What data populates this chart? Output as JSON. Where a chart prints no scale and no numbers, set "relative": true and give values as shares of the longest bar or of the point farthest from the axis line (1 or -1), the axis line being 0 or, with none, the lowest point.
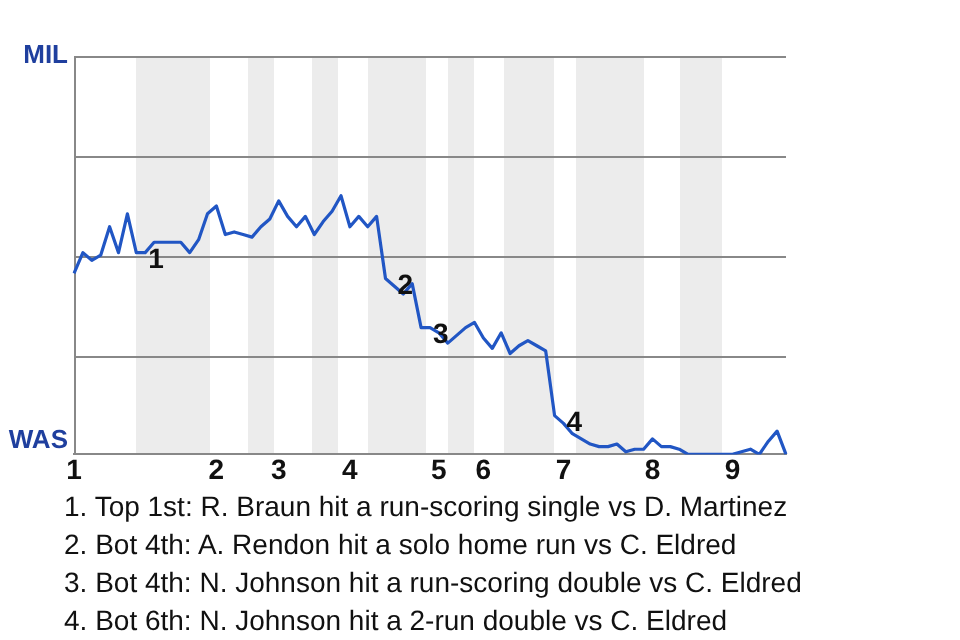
{
  "chart_data": {
    "type": "line",
    "relative": true,
    "categories": [
      "1",
      null,
      null,
      null,
      null,
      null,
      null,
      null,
      null,
      null,
      null,
      null,
      null,
      null,
      null,
      null,
      "2",
      null,
      null,
      null,
      null,
      null,
      null,
      "3",
      null,
      null,
      null,
      null,
      null,
      null,
      null,
      "4",
      null,
      null,
      null,
      null,
      null,
      null,
      null,
      null,
      null,
      "5",
      null,
      null,
      null,
      null,
      "6",
      null,
      null,
      null,
      null,
      null,
      null,
      null,
      null,
      "7",
      null,
      null,
      null,
      null,
      null,
      null,
      null,
      null,
      null,
      "8",
      null,
      null,
      null,
      null,
      null,
      null,
      null,
      null,
      "9",
      null,
      null,
      null,
      null,
      null,
      null
    ],
    "legend": false,
    "ref_lines": [
      {
        "axis": "y",
        "value": 0.38,
        "color": "#888888"
      },
      {
        "axis": "y",
        "value": 0.77,
        "color": "#888888"
      },
      {
        "axis": "y",
        "value": 1.15,
        "color": "#888888"
      },
      {
        "axis": "y",
        "value": 1.54,
        "color": "#888888"
      }
    ],
    "marker": "none",
    "line_style": "solid",
    "series": [
      {
        "color": "#2156c4",
        "values": [
          0.7,
          0.78,
          0.75,
          0.77,
          0.88,
          0.78,
          0.93,
          0.78,
          0.78,
          0.82,
          0.82,
          0.82,
          0.82,
          0.78,
          0.83,
          0.93,
          0.96,
          0.85,
          0.86,
          0.85,
          0.84,
          0.88,
          0.91,
          0.98,
          0.92,
          0.88,
          0.92,
          0.85,
          0.9,
          0.94,
          1,
          0.88,
          0.92,
          0.88,
          0.92,
          0.68,
          0.65,
          0.62,
          0.66,
          0.49,
          0.49,
          0.47,
          0.43,
          0.46,
          0.49,
          0.51,
          0.45,
          0.41,
          0.47,
          0.39,
          0.42,
          0.44,
          0.42,
          0.4,
          0.15,
          0.12,
          0.08,
          0.06,
          0.04,
          0.03,
          0.03,
          0.04,
          0.01,
          0.02,
          0.02,
          0.06,
          0.03,
          0.03,
          0.02,
          0,
          0,
          0,
          0,
          0,
          0,
          0.01,
          0.02,
          0,
          0.05,
          0.09,
          0
        ]
      }
    ],
    "annotations": [
      "MIL",
      "WAS",
      "1",
      "2",
      "3",
      "4",
      "1. Top 1st: R. Braun hit a run-scoring single vs D. Martinez",
      "2. Bot 4th: A. Rendon hit a solo home run vs C. Eldred",
      "3. Bot 4th: N. Johnson hit a run-scoring double vs C. Eldred",
      "4. Bot 6th: N. Johnson hit a 2-run double vs C. Eldred"
    ]
  }
}
